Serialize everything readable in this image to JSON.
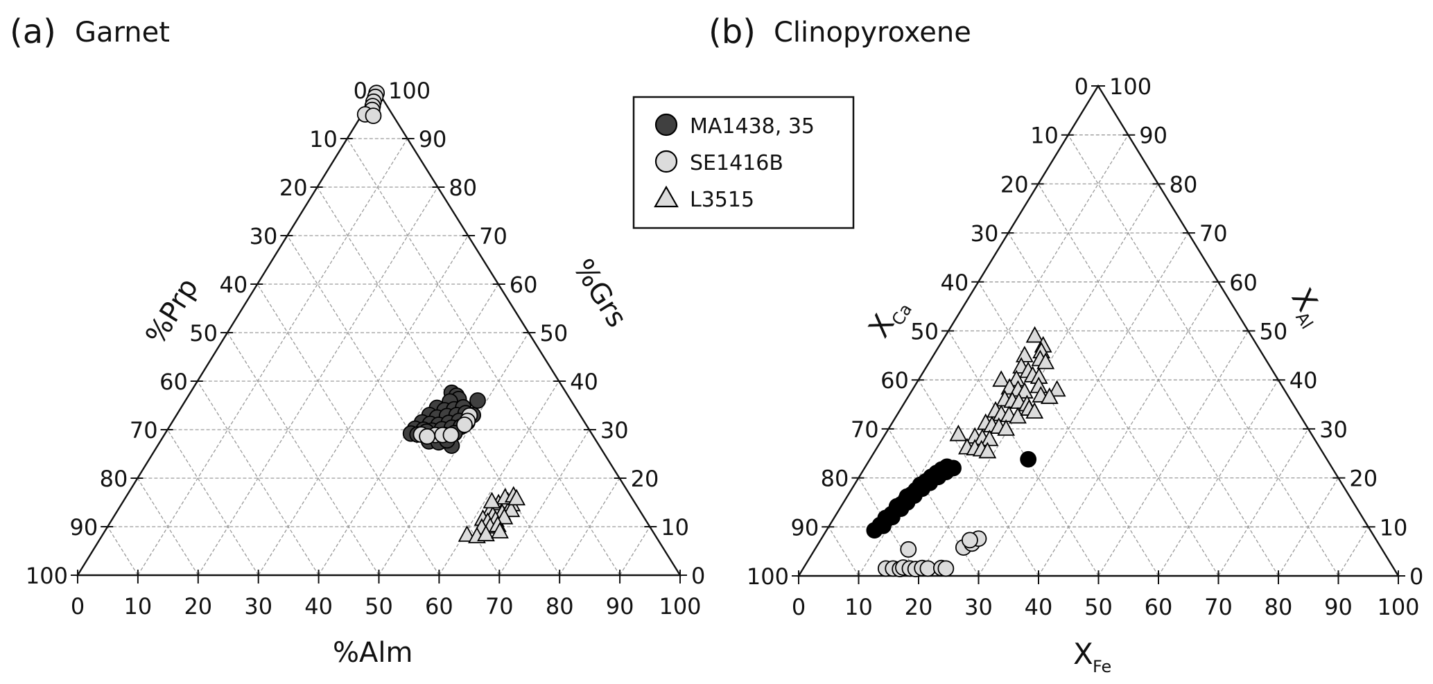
{
  "chart_data": [
    {
      "type": "scatter",
      "subtype": "ternary",
      "panel_label": "(a)",
      "title": "Garnet",
      "axes": {
        "left": {
          "label": "%Prp",
          "ticks": [
            "0",
            "10",
            "20",
            "30",
            "40",
            "50",
            "60",
            "70",
            "80",
            "90",
            "100"
          ]
        },
        "right": {
          "label": "%Grs",
          "ticks": [
            "100",
            "90",
            "80",
            "70",
            "60",
            "50",
            "40",
            "30",
            "20",
            "10",
            "0"
          ]
        },
        "bottom": {
          "label": "%Alm",
          "ticks": [
            "0",
            "10",
            "20",
            "30",
            "40",
            "50",
            "60",
            "70",
            "80",
            "90",
            "100"
          ]
        }
      },
      "grid": true,
      "series": [
        {
          "name": "MA1438, 35",
          "marker": "circle",
          "color": "#404040",
          "points": [
            [
              43.4,
              37.6
            ],
            [
              44.5,
              37
            ],
            [
              45.2,
              36.3
            ],
            [
              44,
              35.8
            ],
            [
              48.5,
              36
            ],
            [
              42.5,
              34.5
            ],
            [
              44,
              34
            ],
            [
              45.5,
              34.2
            ],
            [
              46.8,
              34.6
            ],
            [
              42,
              33
            ],
            [
              43.5,
              32.5
            ],
            [
              45,
              32.8
            ],
            [
              46.5,
              33
            ],
            [
              47.8,
              33.4
            ],
            [
              41.5,
              31.5
            ],
            [
              43,
              31.2
            ],
            [
              44.5,
              31
            ],
            [
              46,
              31.4
            ],
            [
              47.5,
              31.8
            ],
            [
              41,
              30.2
            ],
            [
              42.5,
              30
            ],
            [
              44,
              29.8
            ],
            [
              45.5,
              30.1
            ],
            [
              47,
              30.4
            ],
            [
              48.4,
              30.6
            ],
            [
              40.8,
              29.2
            ],
            [
              42,
              29
            ],
            [
              43.5,
              28.8
            ],
            [
              45,
              28.6
            ],
            [
              46.5,
              28.9
            ],
            [
              48,
              29.3
            ],
            [
              44.6,
              27.6
            ],
            [
              46.3,
              27.4
            ],
            [
              48.8,
              26.7
            ],
            [
              47.5,
              27.8
            ],
            [
              43.2,
              29.6
            ],
            [
              49,
              31.5
            ],
            [
              49.2,
              33
            ]
          ]
        },
        {
          "name": "SE1416B",
          "marker": "circle",
          "color": "#dcdcdc",
          "points": [
            [
              0.2,
              99.4
            ],
            [
              0.4,
              98.6
            ],
            [
              0.6,
              97.6
            ],
            [
              0.9,
              96.7
            ],
            [
              1.2,
              95.9
            ],
            [
              0.5,
              95.0
            ],
            [
              2.0,
              94.7
            ],
            [
              45.0,
              28.9
            ],
            [
              46.2,
              28.9
            ],
            [
              47.6,
              28.9
            ],
            [
              48.7,
              32.9
            ],
            [
              48.9,
              31.8
            ],
            [
              42.6,
              29.0
            ],
            [
              43.8,
              28.6
            ],
            [
              48.8,
              31.0
            ]
          ]
        },
        {
          "name": "L3515",
          "marker": "triangle",
          "color": "#dcdcdc",
          "points": [
            [
              63.2,
              13.5
            ],
            [
              62.5,
              14.8
            ],
            [
              63.8,
              15.2
            ],
            [
              64.8,
              14.6
            ],
            [
              61.9,
              13.1
            ],
            [
              62.8,
              12.3
            ],
            [
              64.1,
              12.8
            ],
            [
              65.3,
              13.4
            ],
            [
              61.5,
              11.6
            ],
            [
              62.6,
              11.0
            ],
            [
              63.7,
              11.4
            ],
            [
              64.9,
              11.9
            ],
            [
              62.2,
              9.8
            ],
            [
              63.5,
              10.0
            ],
            [
              64.6,
              10.3
            ],
            [
              60.5,
              8.3
            ],
            [
              62.3,
              8.0
            ],
            [
              63.6,
              8.4
            ],
            [
              65.6,
              9.0
            ],
            [
              63.0,
              16.0
            ],
            [
              64.2,
              16.4
            ],
            [
              65.0,
              15.8
            ],
            [
              61.2,
              15.2
            ]
          ]
        }
      ]
    },
    {
      "type": "scatter",
      "subtype": "ternary",
      "panel_label": "(b)",
      "title": "Clinopyroxene",
      "axes": {
        "left": {
          "label": "X",
          "label_sub": "Ca",
          "ticks": [
            "0",
            "10",
            "20",
            "30",
            "40",
            "50",
            "60",
            "70",
            "80",
            "90",
            "100"
          ]
        },
        "right": {
          "label": "X",
          "label_sub": "Al",
          "ticks": [
            "100",
            "90",
            "80",
            "70",
            "60",
            "50",
            "40",
            "30",
            "20",
            "10",
            "0"
          ]
        },
        "bottom": {
          "label": "X",
          "label_sub": "Fe",
          "ticks": [
            "0",
            "10",
            "20",
            "30",
            "40",
            "50",
            "60",
            "70",
            "80",
            "90",
            "100"
          ]
        }
      },
      "grid": true,
      "series": [
        {
          "name": "MA1438, 35",
          "marker": "circle",
          "color": "#000000",
          "points": [
            [
              8.0,
              9.3
            ],
            [
              8.4,
              10.4
            ],
            [
              8.9,
              11.5
            ],
            [
              9.2,
              12.6
            ],
            [
              9.5,
              13.6
            ],
            [
              9.8,
              14.6
            ],
            [
              10.1,
              15.6
            ],
            [
              10.5,
              16.6
            ],
            [
              10.8,
              17.5
            ],
            [
              11.2,
              18.4
            ],
            [
              11.6,
              19.3
            ],
            [
              12.0,
              20.2
            ],
            [
              12.5,
              21.0
            ],
            [
              13.0,
              21.7
            ],
            [
              13.6,
              22.3
            ],
            [
              9.0,
              10.2
            ],
            [
              9.6,
              12.0
            ],
            [
              10.2,
              13.7
            ],
            [
              10.6,
              15.0
            ],
            [
              11.1,
              16.4
            ],
            [
              11.7,
              17.8
            ],
            [
              12.4,
              19.0
            ],
            [
              13.2,
              20.2
            ],
            [
              14.0,
              21.2
            ],
            [
              14.8,
              22.0
            ],
            [
              8.6,
              11.8
            ],
            [
              9.3,
              14.2
            ],
            [
              10.0,
              16.2
            ],
            [
              11.0,
              18.6
            ],
            [
              26.4,
              23.8
            ]
          ]
        },
        {
          "name": "SE1416B",
          "marker": "circle",
          "color": "#dcdcdc",
          "points": [
            [
              13.8,
              1.5
            ],
            [
              15.0,
              1.5
            ],
            [
              16.2,
              1.4
            ],
            [
              16.6,
              1.7
            ],
            [
              17.8,
              1.5
            ],
            [
              18.8,
              1.4
            ],
            [
              19.8,
              1.6
            ],
            [
              20.8,
              1.5
            ],
            [
              23.0,
              1.6
            ],
            [
              23.8,
              1.5
            ],
            [
              15.6,
              5.4
            ],
            [
              24.6,
              5.8
            ],
            [
              25.6,
              6.6
            ],
            [
              26.2,
              7.6
            ],
            [
              24.9,
              7.3
            ]
          ]
        },
        {
          "name": "L3515",
          "marker": "triangle",
          "color": "#dcdcdc",
          "points": [
            [
              14.9,
              49.0
            ],
            [
              17.3,
              47.0
            ],
            [
              15.2,
              45.0
            ],
            [
              17.6,
              45.8
            ],
            [
              18.2,
              44.2
            ],
            [
              19.4,
              43.6
            ],
            [
              15.8,
              42.7
            ],
            [
              17.4,
              41.8
            ],
            [
              18.6,
              40.9
            ],
            [
              19.8,
              40.6
            ],
            [
              13.8,
              40.0
            ],
            [
              16.3,
              40.1
            ],
            [
              20.7,
              38.7
            ],
            [
              16.0,
              38.4
            ],
            [
              17.6,
              38.0
            ],
            [
              18.9,
              37.6
            ],
            [
              22.0,
              36.8
            ],
            [
              16.4,
              36.0
            ],
            [
              17.8,
              35.7
            ],
            [
              19.0,
              35.5
            ],
            [
              20.6,
              35.0
            ],
            [
              16.0,
              33.7
            ],
            [
              17.3,
              33.0
            ],
            [
              18.7,
              32.8
            ],
            [
              20.3,
              32.5
            ],
            [
              15.6,
              31.2
            ],
            [
              16.9,
              30.7
            ],
            [
              18.2,
              30.4
            ],
            [
              19.6,
              30.0
            ],
            [
              12.2,
              28.9
            ],
            [
              15.2,
              28.4
            ],
            [
              16.6,
              28.1
            ],
            [
              17.9,
              27.9
            ],
            [
              15.0,
              26.2
            ],
            [
              16.4,
              26.0
            ],
            [
              17.6,
              25.8
            ],
            [
              18.8,
              25.4
            ],
            [
              24.1,
              38.0
            ],
            [
              23.6,
              36.5
            ],
            [
              21.4,
              34.1
            ],
            [
              22.6,
              33.5
            ]
          ]
        }
      ]
    }
  ],
  "legend": {
    "placement": "top-center",
    "items": [
      {
        "label": "MA1438, 35",
        "marker": "circle",
        "color": "#404040"
      },
      {
        "label": "SE1416B",
        "marker": "circle",
        "color": "#dcdcdc"
      },
      {
        "label": "L3515",
        "marker": "triangle",
        "color": "#dcdcdc"
      }
    ]
  }
}
